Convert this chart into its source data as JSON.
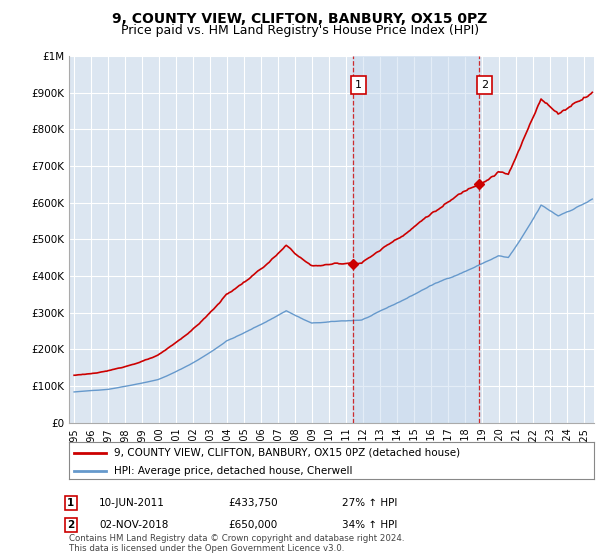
{
  "title": "9, COUNTY VIEW, CLIFTON, BANBURY, OX15 0PZ",
  "subtitle": "Price paid vs. HM Land Registry's House Price Index (HPI)",
  "ylabel_ticks": [
    "£0",
    "£100K",
    "£200K",
    "£300K",
    "£400K",
    "£500K",
    "£600K",
    "£700K",
    "£800K",
    "£900K",
    "£1M"
  ],
  "ylim": [
    0,
    1000000
  ],
  "bg_color": "#dce6f1",
  "shade_color": "#c5d8ee",
  "red_color": "#cc0000",
  "blue_color": "#6699cc",
  "grid_color": "#ffffff",
  "sale1_date": 2011.44,
  "sale1_price": 433750,
  "sale2_date": 2018.84,
  "sale2_price": 650000,
  "legend_red": "9, COUNTY VIEW, CLIFTON, BANBURY, OX15 0PZ (detached house)",
  "legend_blue": "HPI: Average price, detached house, Cherwell",
  "ann1_date": "10-JUN-2011",
  "ann1_price": "£433,750",
  "ann1_hpi": "27% ↑ HPI",
  "ann2_date": "02-NOV-2018",
  "ann2_price": "£650,000",
  "ann2_hpi": "34% ↑ HPI",
  "footer": "Contains HM Land Registry data © Crown copyright and database right 2024.\nThis data is licensed under the Open Government Licence v3.0.",
  "title_fontsize": 10,
  "subtitle_fontsize": 9
}
